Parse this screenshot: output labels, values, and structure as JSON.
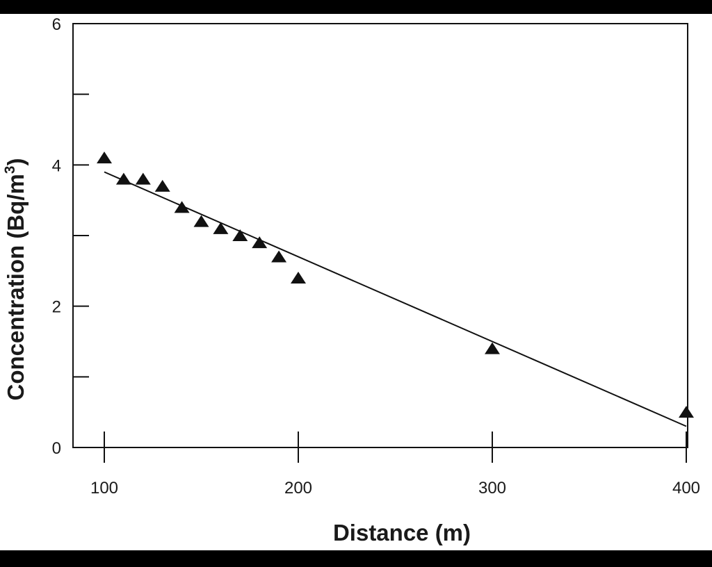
{
  "chart_data": {
    "type": "scatter",
    "title": "",
    "xlabel": "Distance (m)",
    "ylabel_main": "Concentration (Bq/m",
    "ylabel_sup": "3",
    "ylabel_close": ")",
    "xlim": [
      100,
      400
    ],
    "ylim": [
      0,
      6
    ],
    "x_ticks": [
      100,
      200,
      300,
      400
    ],
    "x_tick_labels": [
      "100",
      "200",
      "300",
      "400"
    ],
    "y_ticks": [
      0,
      1,
      2,
      3,
      4,
      5,
      6
    ],
    "y_tick_labels": [
      "0",
      "",
      "2",
      "",
      "4",
      "",
      "6"
    ],
    "grid": false,
    "legend": "none",
    "marker": "triangle",
    "marker_color": "#111111",
    "line_color": "#111111",
    "points": [
      {
        "x": 100,
        "y": 4.1
      },
      {
        "x": 110,
        "y": 3.8
      },
      {
        "x": 120,
        "y": 3.8
      },
      {
        "x": 130,
        "y": 3.7
      },
      {
        "x": 140,
        "y": 3.4
      },
      {
        "x": 150,
        "y": 3.2
      },
      {
        "x": 160,
        "y": 3.1
      },
      {
        "x": 170,
        "y": 3.0
      },
      {
        "x": 180,
        "y": 2.9
      },
      {
        "x": 190,
        "y": 2.7
      },
      {
        "x": 200,
        "y": 2.4
      },
      {
        "x": 300,
        "y": 1.4
      },
      {
        "x": 400,
        "y": 0.5
      }
    ],
    "trend_line": {
      "x": [
        100,
        400
      ],
      "y": [
        3.9,
        0.3
      ]
    }
  }
}
